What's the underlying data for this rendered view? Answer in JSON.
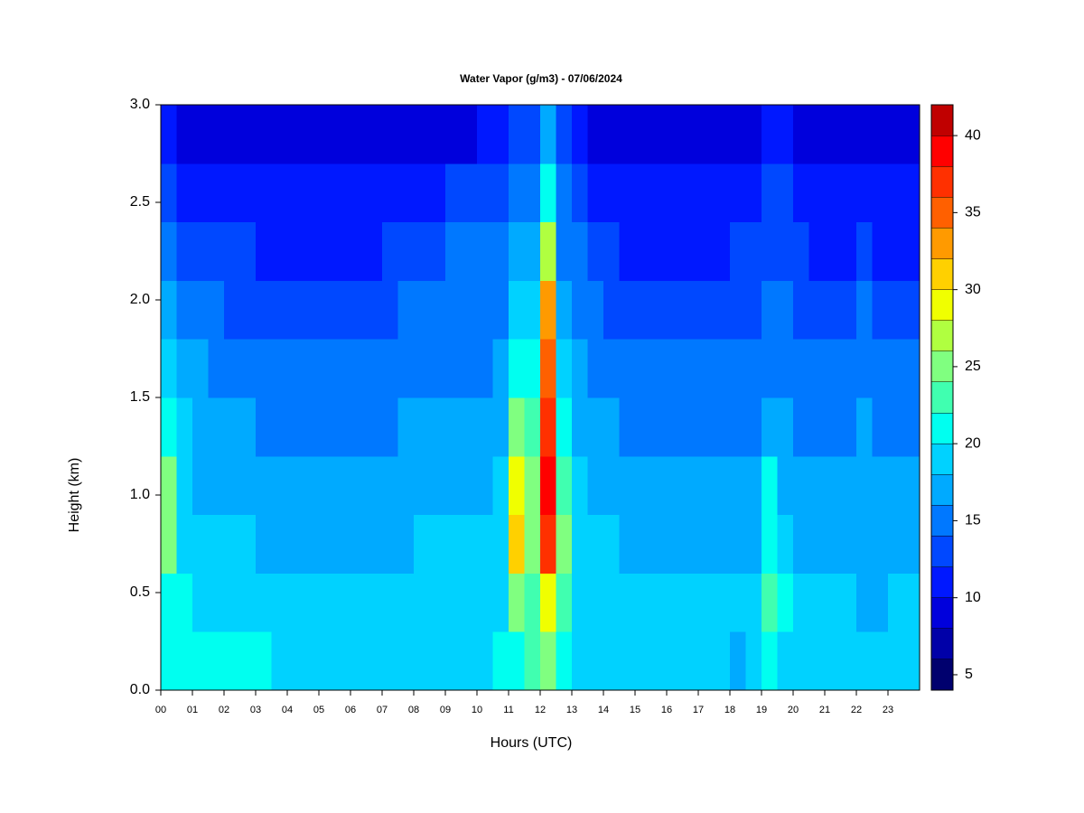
{
  "chart_data": {
    "type": "heatmap",
    "title": "Water Vapor (g/m3) - 07/06/2024",
    "x_label": "Hours (UTC)",
    "y_label": "Height (km)",
    "xlim": [
      0,
      24
    ],
    "ylim": [
      0,
      3
    ],
    "xticks": [
      {
        "value": 0,
        "label": "00"
      },
      {
        "value": 1,
        "label": "01"
      },
      {
        "value": 2,
        "label": "02"
      },
      {
        "value": 3,
        "label": "03"
      },
      {
        "value": 4,
        "label": "04"
      },
      {
        "value": 5,
        "label": "05"
      },
      {
        "value": 6,
        "label": "06"
      },
      {
        "value": 7,
        "label": "07"
      },
      {
        "value": 8,
        "label": "08"
      },
      {
        "value": 9,
        "label": "09"
      },
      {
        "value": 10,
        "label": "10"
      },
      {
        "value": 11,
        "label": "11"
      },
      {
        "value": 12,
        "label": "12"
      },
      {
        "value": 13,
        "label": "13"
      },
      {
        "value": 14,
        "label": "14"
      },
      {
        "value": 15,
        "label": "15"
      },
      {
        "value": 16,
        "label": "16"
      },
      {
        "value": 17,
        "label": "17"
      },
      {
        "value": 18,
        "label": "18"
      },
      {
        "value": 19,
        "label": "19"
      },
      {
        "value": 20,
        "label": "20"
      },
      {
        "value": 21,
        "label": "21"
      },
      {
        "value": 22,
        "label": "22"
      },
      {
        "value": 23,
        "label": "23"
      }
    ],
    "yticks": [
      {
        "value": 0,
        "label": "0.0"
      },
      0.5,
      {
        "value": 1,
        "label": "1.0"
      },
      1.5,
      {
        "value": 2,
        "label": "2.0"
      },
      2.5,
      {
        "value": 3,
        "label": "3.0"
      }
    ],
    "x": [
      0,
      0.5,
      1,
      1.5,
      2,
      2.5,
      3,
      3.5,
      4,
      4.5,
      5,
      5.5,
      6,
      6.5,
      7,
      7.5,
      8,
      8.5,
      9,
      9.5,
      10,
      10.5,
      11,
      11.5,
      12,
      12.5,
      13,
      13.5,
      14,
      14.5,
      15,
      15.5,
      16,
      16.5,
      17,
      17.5,
      18,
      18.5,
      19,
      19.5,
      20,
      20.5,
      21,
      21.5,
      22,
      22.5,
      23,
      23.5
    ],
    "y": [
      0,
      0.3,
      0.6,
      0.9,
      1.2,
      1.5,
      1.8,
      2.1,
      2.4,
      2.7
    ],
    "z": [
      [
        20,
        20,
        20,
        20,
        21,
        20,
        20,
        19,
        19,
        19,
        19,
        19,
        19,
        19,
        19,
        19,
        19,
        19,
        19,
        19,
        19,
        20,
        21,
        22,
        24,
        21,
        19,
        19,
        19,
        19,
        19,
        19,
        19,
        19,
        19,
        18,
        17,
        18,
        20,
        19,
        19,
        19,
        19,
        18,
        19,
        18,
        19,
        19
      ],
      [
        21,
        20,
        19,
        19,
        19,
        18,
        18,
        18,
        18,
        18,
        18,
        18,
        18,
        18,
        18,
        19,
        19,
        19,
        19,
        19,
        19,
        19,
        25,
        23,
        28,
        22,
        19,
        19,
        19,
        18,
        18,
        18,
        18,
        18,
        18,
        18,
        18,
        18,
        22,
        20,
        18,
        18,
        18,
        18,
        17,
        17,
        18,
        18
      ],
      [
        24,
        19,
        18,
        18,
        18,
        18,
        17,
        17,
        17,
        17,
        17,
        17,
        17,
        17,
        17,
        17,
        18,
        18,
        18,
        18,
        18,
        18,
        30,
        24,
        36,
        24,
        18,
        18,
        18,
        17,
        17,
        17,
        17,
        17,
        17,
        17,
        16,
        17,
        21,
        19,
        17,
        16,
        16,
        16,
        16,
        17,
        16,
        16
      ],
      [
        24,
        19,
        17,
        17,
        17,
        17,
        16,
        16,
        16,
        16,
        16,
        16,
        16,
        16,
        16,
        17,
        17,
        17,
        17,
        17,
        17,
        18,
        28,
        24,
        38,
        22,
        18,
        17,
        17,
        16,
        16,
        16,
        16,
        16,
        16,
        16,
        16,
        16,
        20,
        17,
        16,
        16,
        16,
        16,
        16,
        16,
        16,
        16
      ],
      [
        21,
        18,
        17,
        17,
        16,
        16,
        15,
        15,
        15,
        15,
        15,
        15,
        15,
        15,
        15,
        16,
        16,
        16,
        17,
        16,
        16,
        17,
        24,
        22,
        36,
        20,
        17,
        16,
        16,
        15,
        15,
        15,
        15,
        15,
        15,
        15,
        15,
        15,
        17,
        16,
        15,
        15,
        15,
        15,
        16,
        15,
        15,
        15
      ],
      [
        18,
        16,
        16,
        15,
        15,
        14,
        14,
        14,
        14,
        14,
        14,
        14,
        14,
        14,
        14,
        15,
        15,
        15,
        15,
        15,
        15,
        16,
        21,
        20,
        34,
        18,
        16,
        15,
        15,
        14,
        14,
        14,
        14,
        14,
        14,
        14,
        14,
        14,
        15,
        15,
        14,
        14,
        14,
        14,
        15,
        14,
        14,
        14
      ],
      [
        16,
        15,
        14,
        14,
        13,
        13,
        13,
        13,
        13,
        13,
        12,
        12,
        12,
        12,
        13,
        14,
        14,
        15,
        15,
        15,
        15,
        15,
        19,
        18,
        32,
        16,
        15,
        14,
        13,
        13,
        12,
        12,
        13,
        13,
        13,
        13,
        13,
        13,
        14,
        14,
        13,
        13,
        13,
        13,
        14,
        13,
        13,
        13
      ],
      [
        14,
        13,
        13,
        13,
        12,
        12,
        11,
        11,
        11,
        11,
        11,
        11,
        11,
        11,
        12,
        12,
        13,
        13,
        14,
        14,
        14,
        15,
        17,
        16,
        26,
        15,
        14,
        13,
        12,
        11,
        11,
        11,
        11,
        11,
        11,
        11,
        12,
        12,
        13,
        13,
        12,
        11,
        11,
        11,
        12,
        11,
        11,
        11
      ],
      [
        12,
        11,
        11,
        11,
        11,
        10,
        10,
        10,
        10,
        10,
        10,
        10,
        10,
        10,
        10,
        11,
        11,
        11,
        12,
        12,
        12,
        13,
        15,
        14,
        20,
        14,
        12,
        11,
        10,
        10,
        10,
        10,
        10,
        10,
        10,
        10,
        10,
        11,
        12,
        12,
        11,
        10,
        10,
        10,
        11,
        10,
        10,
        10
      ],
      [
        10,
        9,
        9,
        9,
        9,
        9,
        9,
        9,
        9,
        9,
        9,
        9,
        9,
        9,
        9,
        9,
        9,
        9,
        9,
        9,
        10,
        11,
        13,
        12,
        16,
        12,
        10,
        9,
        9,
        9,
        9,
        9,
        9,
        9,
        9,
        9,
        9,
        9,
        10,
        10,
        9,
        9,
        9,
        8,
        9,
        9,
        9,
        8
      ]
    ],
    "levels": [
      4,
      6,
      8,
      10,
      12,
      14,
      16,
      18,
      20,
      22,
      24,
      26,
      28,
      30,
      32,
      34,
      36,
      38,
      40,
      42
    ],
    "colors": [
      "#00006e",
      "#0000a8",
      "#0000dc",
      "#0018ff",
      "#0048ff",
      "#0078ff",
      "#00aaff",
      "#00d2ff",
      "#00fff0",
      "#40ffb0",
      "#80ff80",
      "#b0ff40",
      "#f0ff00",
      "#ffd000",
      "#ff9a00",
      "#ff6000",
      "#ff3000",
      "#ff0000",
      "#c00000",
      "#800000"
    ],
    "colorbar_ticks": [
      5,
      10,
      15,
      20,
      25,
      30,
      35,
      40
    ]
  }
}
